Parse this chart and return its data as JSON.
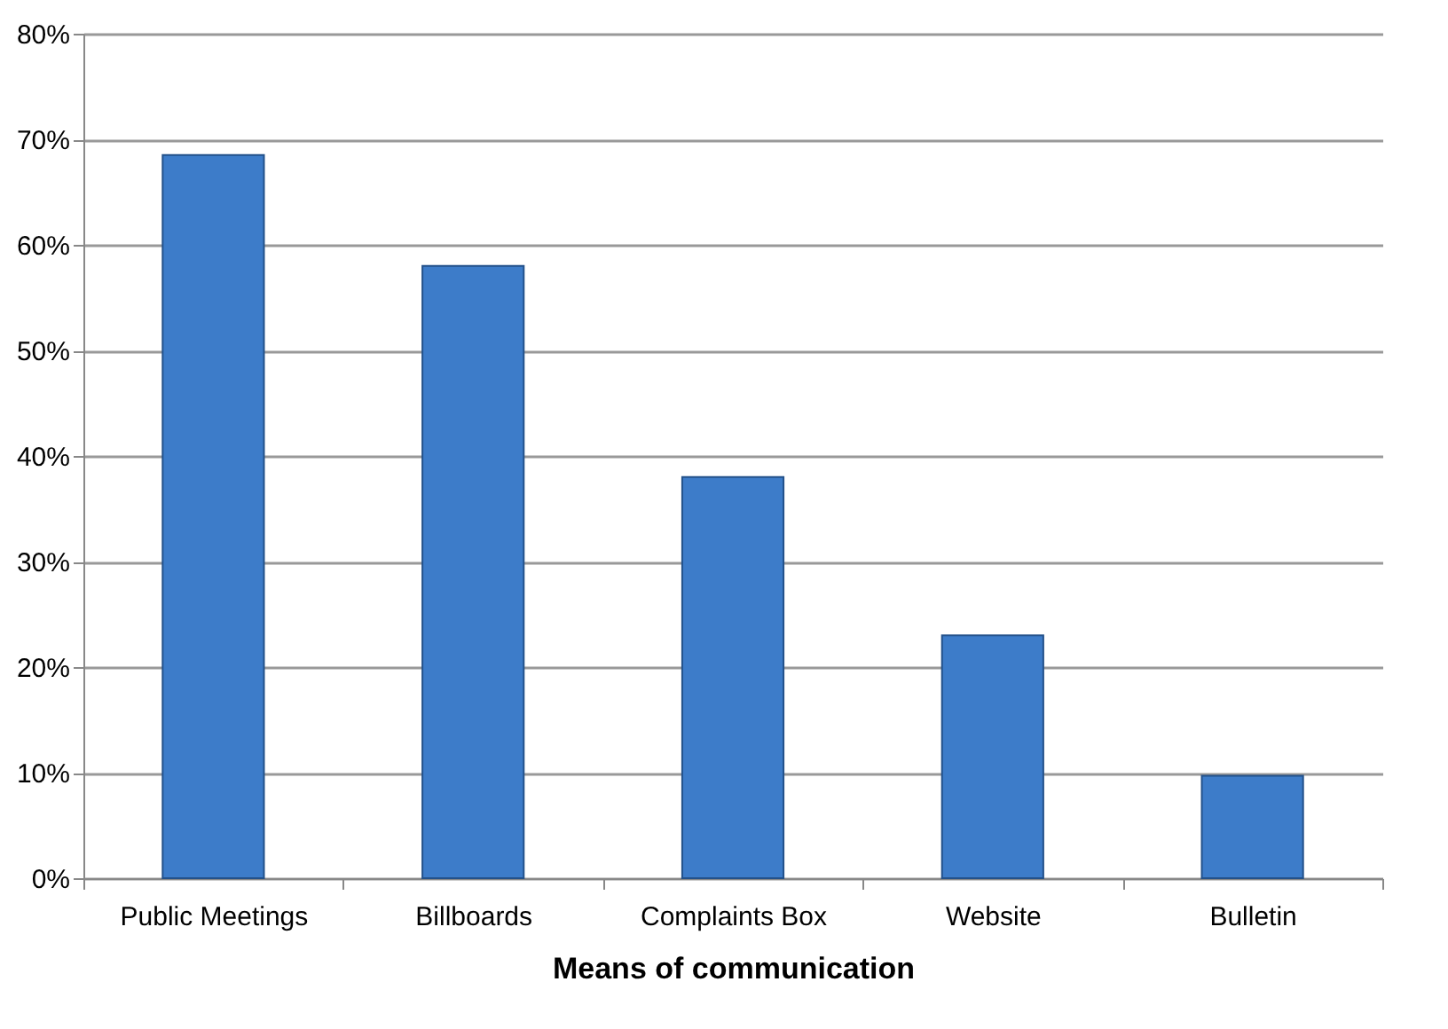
{
  "chart_data": {
    "type": "bar",
    "xlabel": "Means of communication",
    "categories": [
      "Public Meetings",
      "Billboards",
      "Complaints Box",
      "Website",
      "Bulletin"
    ],
    "values": [
      68.5,
      58,
      38,
      23,
      9.7
    ],
    "color": "#3d7cc9",
    "ylim": [
      0,
      80
    ],
    "yticks": [
      {
        "value": 0,
        "label": "0%"
      },
      {
        "value": 10,
        "label": "10%"
      },
      {
        "value": 20,
        "label": "20%"
      },
      {
        "value": 30,
        "label": "30%"
      },
      {
        "value": 40,
        "label": "40%"
      },
      {
        "value": 50,
        "label": "50%"
      },
      {
        "value": 60,
        "label": "60%"
      },
      {
        "value": 70,
        "label": "70%"
      },
      {
        "value": 80,
        "label": "80%"
      }
    ],
    "grid": "y"
  }
}
